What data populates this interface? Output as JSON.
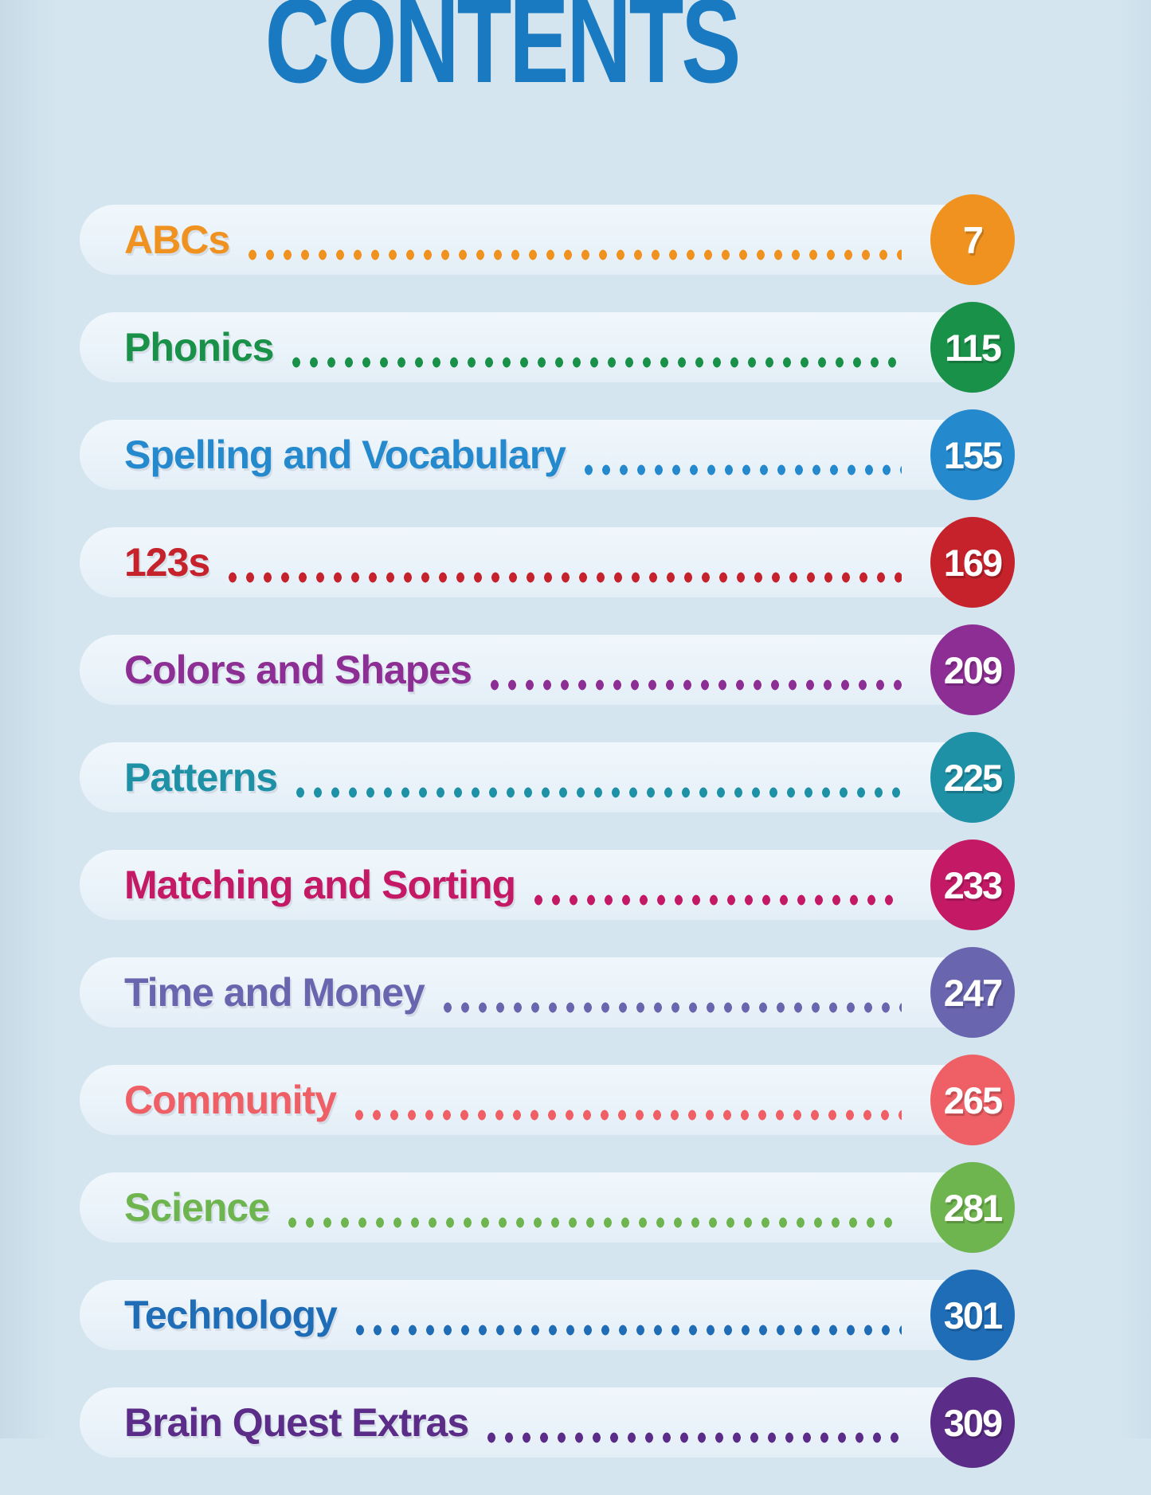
{
  "page": {
    "title": "CONTENTS",
    "title_color": "#1a7ac1",
    "background_color": "#d4e5ef",
    "row_background_color": "#eaf3fa",
    "page_number_text_color": "#ffffff"
  },
  "contents": {
    "items": [
      {
        "label": "ABCs",
        "page": "7",
        "color": "#f09220"
      },
      {
        "label": "Phonics",
        "page": "115",
        "color": "#1a9149"
      },
      {
        "label": "Spelling and Vocabulary",
        "page": "155",
        "color": "#2589ce"
      },
      {
        "label": "123s",
        "page": "169",
        "color": "#c5222b"
      },
      {
        "label": "Colors and Shapes",
        "page": "209",
        "color": "#8d2e95"
      },
      {
        "label": "Patterns",
        "page": "225",
        "color": "#1e91a7"
      },
      {
        "label": "Matching and Sorting",
        "page": "233",
        "color": "#c41a66"
      },
      {
        "label": "Time and Money",
        "page": "247",
        "color": "#6a65af"
      },
      {
        "label": "Community",
        "page": "265",
        "color": "#ee6065"
      },
      {
        "label": "Science",
        "page": "281",
        "color": "#6fb54f"
      },
      {
        "label": "Technology",
        "page": "301",
        "color": "#1e6db6"
      },
      {
        "label": "Brain Quest Extras",
        "page": "309",
        "color": "#5b2d88"
      }
    ]
  }
}
